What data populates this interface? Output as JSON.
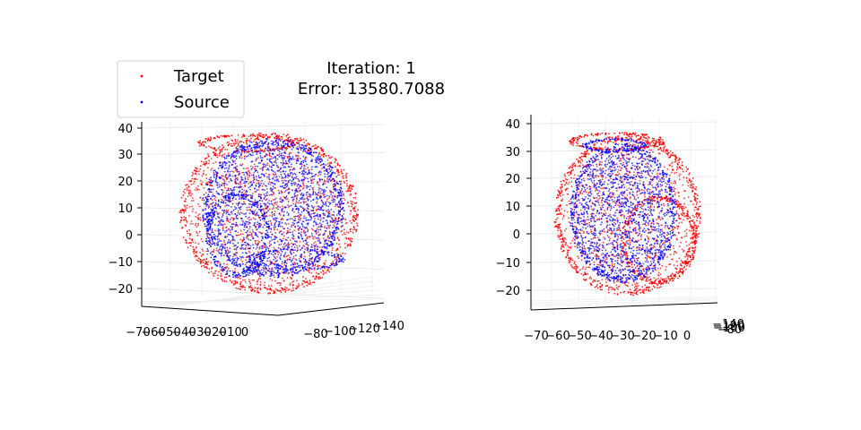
{
  "title_line1": "Iteration: 1",
  "title_line2": "Error: 13580.7088",
  "legend": [
    {
      "label": "Target",
      "color": "#ff0000"
    },
    {
      "label": "Source",
      "color": "#0000ff"
    }
  ],
  "chart_data": [
    {
      "type": "scatter",
      "projection": "3d",
      "legend_placement": "upper-left",
      "grid": true,
      "z_ticks": [
        "40",
        "30",
        "20",
        "10",
        "0",
        "−10",
        "−20"
      ],
      "x_ticks": [
        "−70",
        "−60",
        "−50",
        "−40",
        "−30",
        "−20",
        "−10",
        "0"
      ],
      "y_ticks": [
        "−80",
        "−100",
        "−120",
        "−140"
      ],
      "series": [
        {
          "name": "Target",
          "color": "#ff0000",
          "x_range": [
            -70,
            0
          ],
          "y_range": [
            -140,
            -80
          ],
          "z_range": [
            -25,
            40
          ]
        },
        {
          "name": "Source",
          "color": "#0000ff",
          "x_range": [
            -60,
            -5
          ],
          "y_range": [
            -130,
            -85
          ],
          "z_range": [
            -20,
            35
          ]
        }
      ]
    },
    {
      "type": "scatter",
      "projection": "3d",
      "grid": true,
      "z_ticks": [
        "40",
        "30",
        "20",
        "10",
        "0",
        "−10",
        "−20"
      ],
      "x_ticks": [
        "−70",
        "−60",
        "−50",
        "−40",
        "−30",
        "−20",
        "−10",
        "0"
      ],
      "y_ticks_overlapping": [
        "−140",
        "−120",
        "−100",
        "−80"
      ],
      "series": [
        {
          "name": "Target",
          "color": "#ff0000"
        },
        {
          "name": "Source",
          "color": "#0000ff"
        }
      ]
    }
  ]
}
